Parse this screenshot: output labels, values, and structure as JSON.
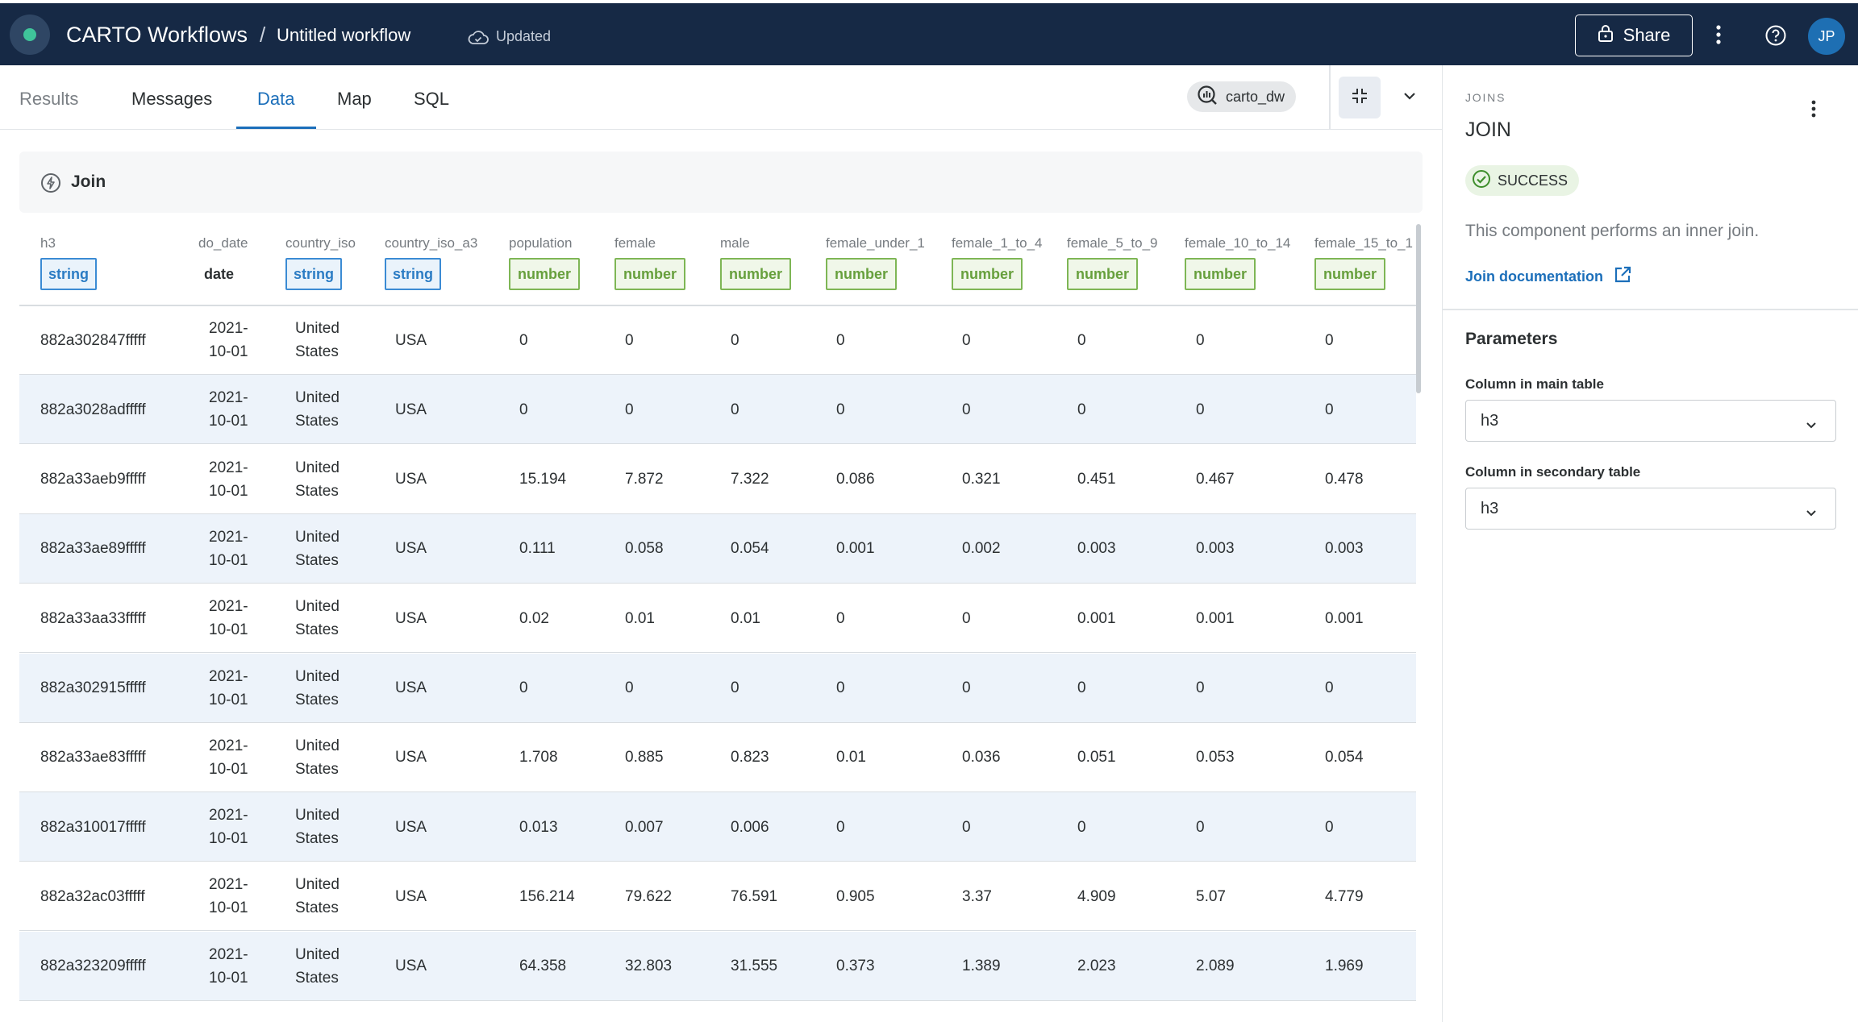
{
  "header": {
    "app_title": "CARTO Workflows",
    "separator": "/",
    "workflow_title": "Untitled workflow",
    "save_status": "Updated",
    "share_label": "Share",
    "avatar_initials": "JP"
  },
  "tabs": [
    {
      "label": "Results"
    },
    {
      "label": "Messages"
    },
    {
      "label": "Data"
    },
    {
      "label": "Map"
    },
    {
      "label": "SQL"
    }
  ],
  "active_tab": "Data",
  "connection": {
    "label": "carto_dw"
  },
  "data_panel": {
    "title": "Join"
  },
  "table": {
    "columns": [
      {
        "name": "h3",
        "type": "string"
      },
      {
        "name": "do_date",
        "type": "date"
      },
      {
        "name": "country_iso",
        "type": "string"
      },
      {
        "name": "country_iso_a3",
        "type": "string"
      },
      {
        "name": "population",
        "type": "number"
      },
      {
        "name": "female",
        "type": "number"
      },
      {
        "name": "male",
        "type": "number"
      },
      {
        "name": "female_under_1",
        "type": "number"
      },
      {
        "name": "female_1_to_4",
        "type": "number"
      },
      {
        "name": "female_5_to_9",
        "type": "number"
      },
      {
        "name": "female_10_to_14",
        "type": "number"
      },
      {
        "name": "female_15_to_1",
        "type": "number"
      }
    ],
    "rows": [
      {
        "h3": "882a302847fffff",
        "date_line1": "2021-",
        "date_line2": "10-01",
        "country_line1": "United",
        "country_line2": "States",
        "iso3": "USA",
        "population": "0",
        "female": "0",
        "male": "0",
        "female_under_1": "0",
        "female_1_to_4": "0",
        "female_5_to_9": "0",
        "female_10_to_14": "0",
        "female_15_to_1": "0"
      },
      {
        "h3": "882a3028adfffff",
        "date_line1": "2021-",
        "date_line2": "10-01",
        "country_line1": "United",
        "country_line2": "States",
        "iso3": "USA",
        "population": "0",
        "female": "0",
        "male": "0",
        "female_under_1": "0",
        "female_1_to_4": "0",
        "female_5_to_9": "0",
        "female_10_to_14": "0",
        "female_15_to_1": "0"
      },
      {
        "h3": "882a33aeb9fffff",
        "date_line1": "2021-",
        "date_line2": "10-01",
        "country_line1": "United",
        "country_line2": "States",
        "iso3": "USA",
        "population": "15.194",
        "female": "7.872",
        "male": "7.322",
        "female_under_1": "0.086",
        "female_1_to_4": "0.321",
        "female_5_to_9": "0.451",
        "female_10_to_14": "0.467",
        "female_15_to_1": "0.478"
      },
      {
        "h3": "882a33ae89fffff",
        "date_line1": "2021-",
        "date_line2": "10-01",
        "country_line1": "United",
        "country_line2": "States",
        "iso3": "USA",
        "population": "0.111",
        "female": "0.058",
        "male": "0.054",
        "female_under_1": "0.001",
        "female_1_to_4": "0.002",
        "female_5_to_9": "0.003",
        "female_10_to_14": "0.003",
        "female_15_to_1": "0.003"
      },
      {
        "h3": "882a33aa33fffff",
        "date_line1": "2021-",
        "date_line2": "10-01",
        "country_line1": "United",
        "country_line2": "States",
        "iso3": "USA",
        "population": "0.02",
        "female": "0.01",
        "male": "0.01",
        "female_under_1": "0",
        "female_1_to_4": "0",
        "female_5_to_9": "0.001",
        "female_10_to_14": "0.001",
        "female_15_to_1": "0.001"
      },
      {
        "h3": "882a302915fffff",
        "date_line1": "2021-",
        "date_line2": "10-01",
        "country_line1": "United",
        "country_line2": "States",
        "iso3": "USA",
        "population": "0",
        "female": "0",
        "male": "0",
        "female_under_1": "0",
        "female_1_to_4": "0",
        "female_5_to_9": "0",
        "female_10_to_14": "0",
        "female_15_to_1": "0"
      },
      {
        "h3": "882a33ae83fffff",
        "date_line1": "2021-",
        "date_line2": "10-01",
        "country_line1": "United",
        "country_line2": "States",
        "iso3": "USA",
        "population": "1.708",
        "female": "0.885",
        "male": "0.823",
        "female_under_1": "0.01",
        "female_1_to_4": "0.036",
        "female_5_to_9": "0.051",
        "female_10_to_14": "0.053",
        "female_15_to_1": "0.054"
      },
      {
        "h3": "882a310017fffff",
        "date_line1": "2021-",
        "date_line2": "10-01",
        "country_line1": "United",
        "country_line2": "States",
        "iso3": "USA",
        "population": "0.013",
        "female": "0.007",
        "male": "0.006",
        "female_under_1": "0",
        "female_1_to_4": "0",
        "female_5_to_9": "0",
        "female_10_to_14": "0",
        "female_15_to_1": "0"
      },
      {
        "h3": "882a32ac03fffff",
        "date_line1": "2021-",
        "date_line2": "10-01",
        "country_line1": "United",
        "country_line2": "States",
        "iso3": "USA",
        "population": "156.214",
        "female": "79.622",
        "male": "76.591",
        "female_under_1": "0.905",
        "female_1_to_4": "3.37",
        "female_5_to_9": "4.909",
        "female_10_to_14": "5.07",
        "female_15_to_1": "4.779"
      },
      {
        "h3": "882a323209fffff",
        "date_line1": "2021-",
        "date_line2": "10-01",
        "country_line1": "United",
        "country_line2": "States",
        "iso3": "USA",
        "population": "64.358",
        "female": "32.803",
        "male": "31.555",
        "female_under_1": "0.373",
        "female_1_to_4": "1.389",
        "female_5_to_9": "2.023",
        "female_10_to_14": "2.089",
        "female_15_to_1": "1.969"
      }
    ]
  },
  "side_panel": {
    "category": "JOINS",
    "title": "JOIN",
    "status": "SUCCESS",
    "description": "This component performs an inner join.",
    "doc_link": "Join documentation",
    "params_title": "Parameters",
    "main_column_label": "Column in main table",
    "main_column_value": "h3",
    "secondary_column_label": "Column in secondary table",
    "secondary_column_value": "h3"
  },
  "colors": {
    "topbar": "#162945",
    "accent": "#1c6fba",
    "string_type": "#3b8bd4",
    "number_type": "#7eb655",
    "success_bg": "#e9f4e4",
    "row_alt": "#edf3fa"
  }
}
